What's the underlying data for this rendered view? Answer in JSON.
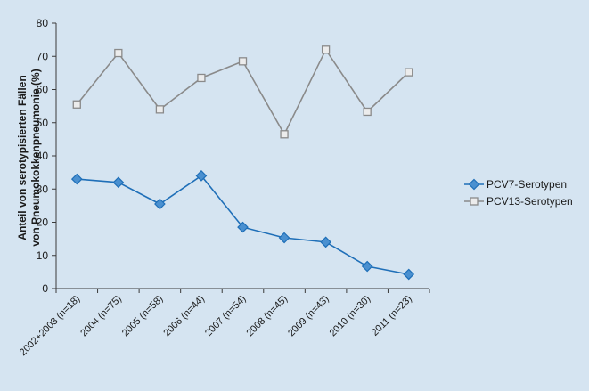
{
  "chart_data": {
    "type": "line",
    "ylabel_line1": "Anteil von serotypisierten Fällen",
    "ylabel_line2": "von Pneumokokkenpneumonie (%)",
    "ylim": [
      0,
      80
    ],
    "yticks": [
      "0",
      "10",
      "20",
      "30",
      "40",
      "50",
      "60",
      "70",
      "80"
    ],
    "categories": [
      "2002+2003 (n=18)",
      "2004 (n=75)",
      "2005 (n=58)",
      "2006 (n=44)",
      "2007 (n=54)",
      "2008 (n=45)",
      "2009 (n=43)",
      "2010 (n=30)",
      "2011 (n=23)"
    ],
    "grid": false,
    "legend_position": "right",
    "series": [
      {
        "name": "PCV7-Serotypen",
        "marker": "diamond",
        "color": "#1f6fb8",
        "fill": "#4a90d0",
        "values": [
          33,
          32,
          25.5,
          34,
          18.5,
          15.3,
          14,
          6.7,
          4.3
        ]
      },
      {
        "name": "PCV13-Serotypen",
        "marker": "square",
        "color": "#8a8a8a",
        "fill": "#ececec",
        "values": [
          55.5,
          71,
          54,
          63.5,
          68.5,
          46.5,
          72,
          53.3,
          65.2
        ]
      }
    ]
  }
}
